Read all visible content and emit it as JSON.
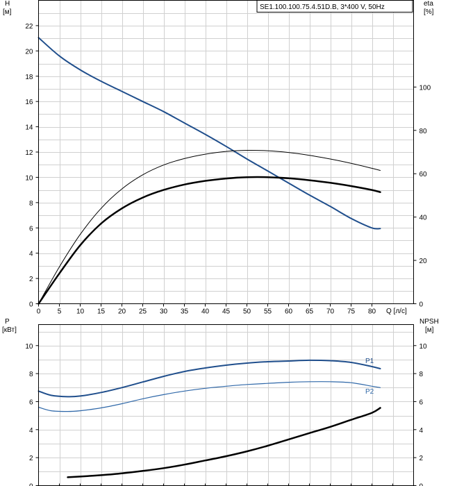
{
  "chart_data": [
    {
      "type": "line",
      "title": "SE1.100.100.75.4.51D.B, 3*400 V, 50Hz",
      "left_axis": {
        "label": "H",
        "unit": "[м]",
        "ylim": [
          0,
          24
        ],
        "ticks": [
          0,
          2,
          4,
          6,
          8,
          10,
          12,
          14,
          16,
          18,
          20,
          22
        ]
      },
      "right_axis": {
        "label": "eta",
        "unit": "[%]",
        "ylim": [
          0,
          140
        ],
        "ticks": [
          0,
          20,
          40,
          60,
          80,
          100
        ]
      },
      "x_axis": {
        "label": "Q [л/с]",
        "xlim": [
          0,
          90
        ],
        "ticks": [
          0,
          5,
          10,
          15,
          20,
          25,
          30,
          35,
          40,
          45,
          50,
          55,
          60,
          65,
          70,
          75,
          80
        ]
      },
      "grid": true,
      "series": [
        {
          "id": "H",
          "axis": "left",
          "color": "#1f4e8c",
          "width": 2,
          "x": [
            0,
            5,
            10,
            15,
            20,
            25,
            30,
            35,
            40,
            45,
            50,
            55,
            60,
            65,
            70,
            75,
            80,
            82
          ],
          "y": [
            21.05,
            19.6,
            18.5,
            17.6,
            16.8,
            16.0,
            15.2,
            14.3,
            13.4,
            12.45,
            11.45,
            10.5,
            9.55,
            8.6,
            7.7,
            6.75,
            6.0,
            5.95
          ]
        },
        {
          "id": "eta_thin",
          "axis": "right",
          "color": "#000000",
          "width": 1,
          "x": [
            0,
            5,
            10,
            15,
            20,
            25,
            30,
            35,
            40,
            45,
            50,
            55,
            60,
            65,
            70,
            75,
            80,
            82
          ],
          "y": [
            0,
            17,
            32,
            44,
            53,
            59.5,
            64,
            67,
            69,
            70.3,
            70.8,
            70.6,
            69.8,
            68.5,
            66.8,
            64.8,
            62.5,
            61.5
          ]
        },
        {
          "id": "eta_thick",
          "axis": "right",
          "color": "#000000",
          "width": 2.5,
          "x": [
            0,
            5,
            10,
            15,
            20,
            25,
            30,
            35,
            40,
            45,
            50,
            55,
            60,
            65,
            70,
            75,
            80,
            82
          ],
          "y": [
            0,
            14,
            27,
            37,
            44,
            49,
            52.5,
            55,
            56.7,
            57.8,
            58.4,
            58.4,
            57.9,
            57,
            55.8,
            54.3,
            52.5,
            51.5
          ]
        }
      ]
    },
    {
      "type": "line",
      "left_axis": {
        "label": "P",
        "unit": "[кВт]",
        "ylim": [
          0,
          11.5
        ],
        "ticks": [
          0,
          2,
          4,
          6,
          8,
          10
        ]
      },
      "right_axis": {
        "label": "NPSH",
        "unit": "[м]",
        "ylim": [
          0,
          11.5
        ],
        "ticks": [
          0,
          2,
          4,
          6,
          8,
          10
        ]
      },
      "x_axis": {
        "xlim": [
          0,
          90
        ]
      },
      "grid": true,
      "series": [
        {
          "id": "P1",
          "name": "P1",
          "axis": "left",
          "color": "#1f4e8c",
          "width": 2,
          "x": [
            0,
            3,
            7,
            10,
            15,
            20,
            25,
            30,
            35,
            40,
            45,
            50,
            55,
            60,
            65,
            70,
            75,
            80,
            82
          ],
          "y": [
            6.75,
            6.45,
            6.35,
            6.4,
            6.65,
            7.0,
            7.4,
            7.8,
            8.15,
            8.4,
            8.6,
            8.75,
            8.85,
            8.9,
            8.95,
            8.92,
            8.8,
            8.5,
            8.35
          ]
        },
        {
          "id": "P2",
          "name": "P2",
          "axis": "left",
          "color": "#2e67a8",
          "width": 1.2,
          "x": [
            0,
            3,
            7,
            10,
            15,
            20,
            25,
            30,
            35,
            40,
            45,
            50,
            55,
            60,
            65,
            70,
            75,
            80,
            82
          ],
          "y": [
            5.6,
            5.35,
            5.3,
            5.35,
            5.55,
            5.85,
            6.2,
            6.5,
            6.75,
            6.95,
            7.1,
            7.22,
            7.3,
            7.38,
            7.42,
            7.42,
            7.35,
            7.1,
            7.0
          ]
        },
        {
          "id": "NPSH",
          "axis": "right",
          "color": "#000000",
          "width": 2.5,
          "x": [
            7,
            10,
            15,
            20,
            25,
            30,
            35,
            40,
            45,
            50,
            55,
            60,
            65,
            70,
            75,
            80,
            82
          ],
          "y": [
            0.6,
            0.65,
            0.75,
            0.88,
            1.05,
            1.25,
            1.5,
            1.8,
            2.1,
            2.45,
            2.85,
            3.3,
            3.75,
            4.2,
            4.7,
            5.2,
            5.55
          ]
        }
      ]
    }
  ]
}
